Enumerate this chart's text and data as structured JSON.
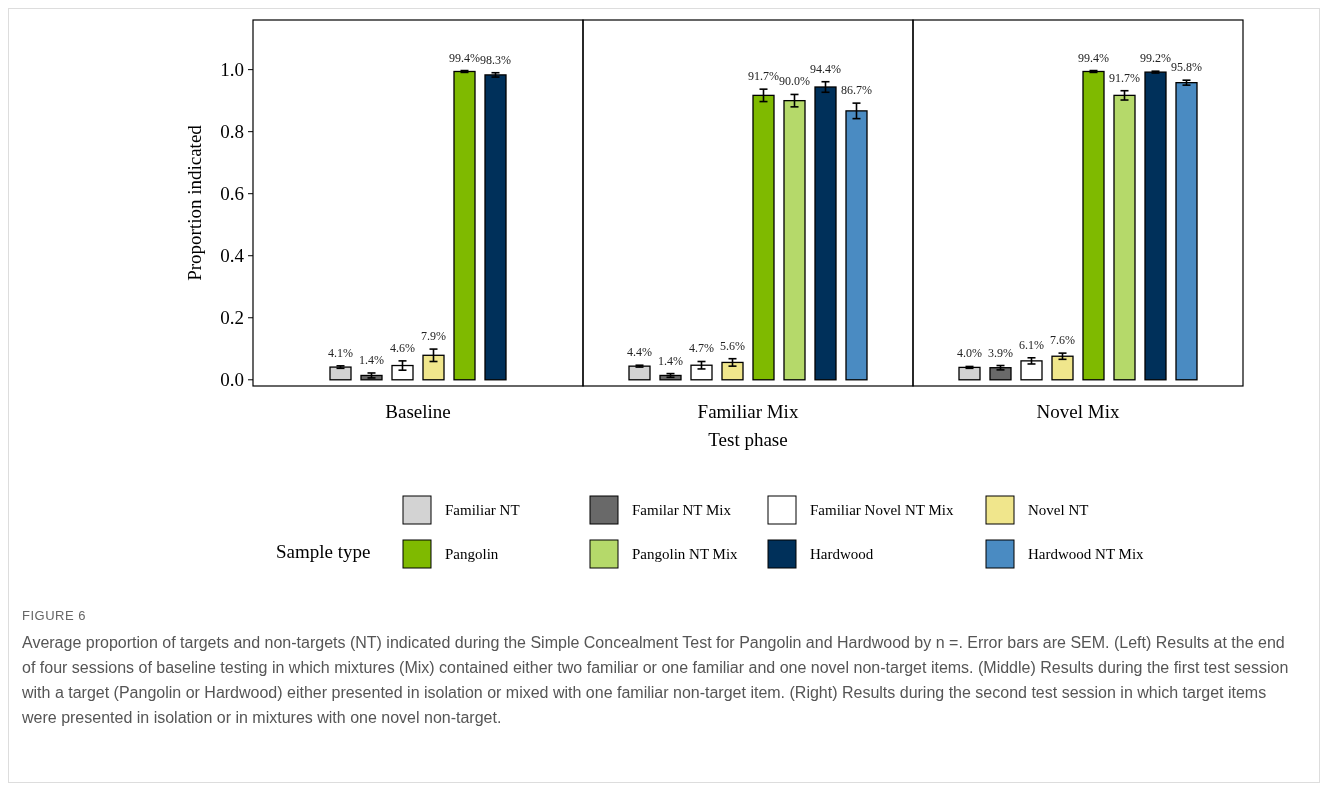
{
  "chart_data": {
    "type": "bar",
    "title": "FIGURE 6",
    "xlabel": "Test phase",
    "ylabel": "Proportion indicated",
    "legend_title": "Sample type",
    "legend": "bottom",
    "categories": [
      "Baseline",
      "Familiar Mix",
      "Novel Mix"
    ],
    "ylim": [
      -0.02,
      1.16
    ],
    "yticks": [
      {
        "value": 0,
        "label": "0.0"
      },
      0.2,
      0.4,
      0.6,
      0.8,
      {
        "value": 1,
        "label": "1.0"
      }
    ],
    "series": [
      {
        "name": "Familiar NT",
        "color": "#d3d3d3",
        "values": [
          0.041,
          0.044,
          0.04
        ],
        "errors": [
          0.004,
          0.003,
          0.003
        ],
        "value_labels": [
          "4.1%",
          "4.4%",
          "4.0%"
        ]
      },
      {
        "name": "Familar NT Mix",
        "color": "#696969",
        "values": [
          0.014,
          0.014,
          0.039
        ],
        "errors": [
          0.008,
          0.006,
          0.007
        ],
        "value_labels": [
          "1.4%",
          "1.4%",
          "3.9%"
        ]
      },
      {
        "name": "Familiar Novel NT Mix",
        "color": "#ffffff",
        "values": [
          0.046,
          0.047,
          0.061
        ],
        "errors": [
          0.015,
          0.012,
          0.01
        ],
        "value_labels": [
          "4.6%",
          "4.7%",
          "6.1%"
        ]
      },
      {
        "name": "Novel NT",
        "color": "#f0e68c",
        "values": [
          0.079,
          0.056,
          0.076
        ],
        "errors": [
          0.02,
          0.012,
          0.01
        ],
        "value_labels": [
          "7.9%",
          "5.6%",
          "7.6%"
        ]
      },
      {
        "name": "Pangolin",
        "color": "#7fba00",
        "values": [
          0.994,
          0.917,
          0.994
        ],
        "errors": [
          0.003,
          0.02,
          0.003
        ],
        "value_labels": [
          "99.4%",
          "91.7%",
          "99.4%"
        ]
      },
      {
        "name": "Pangolin NT Mix",
        "color": "#b5d96a",
        "values": [
          null,
          0.9,
          0.917
        ],
        "errors": [
          null,
          0.02,
          0.015
        ],
        "value_labels": [
          null,
          "90.0%",
          "91.7%"
        ]
      },
      {
        "name": "Hardwood",
        "color": "#00305a",
        "values": [
          0.983,
          0.944,
          0.992
        ],
        "errors": [
          0.007,
          0.017,
          0.003
        ],
        "value_labels": [
          "98.3%",
          "94.4%",
          "99.2%"
        ]
      },
      {
        "name": "Hardwood NT Mix",
        "color": "#4a8bc2",
        "values": [
          null,
          0.867,
          0.958
        ],
        "errors": [
          null,
          0.025,
          0.008
        ],
        "value_labels": [
          null,
          "86.7%",
          "95.8%"
        ]
      }
    ],
    "annotations": [
      "Average proportion of targets and non-targets (NT) indicated during the Simple Concealment Test for Pangolin and Hardwood by n =. Error bars are SEM. (Left) Results at the end of four sessions of baseline testing in which mixtures (Mix) contained either two familiar or one familiar and one novel non-target items. (Middle) Results during the first test session with a target (Pangolin or Hardwood) either presented in isolation or mixed with one familiar non-target item. (Right) Results during the second test session in which target items were presented in isolation or in mixtures with one novel non-target."
    ]
  }
}
